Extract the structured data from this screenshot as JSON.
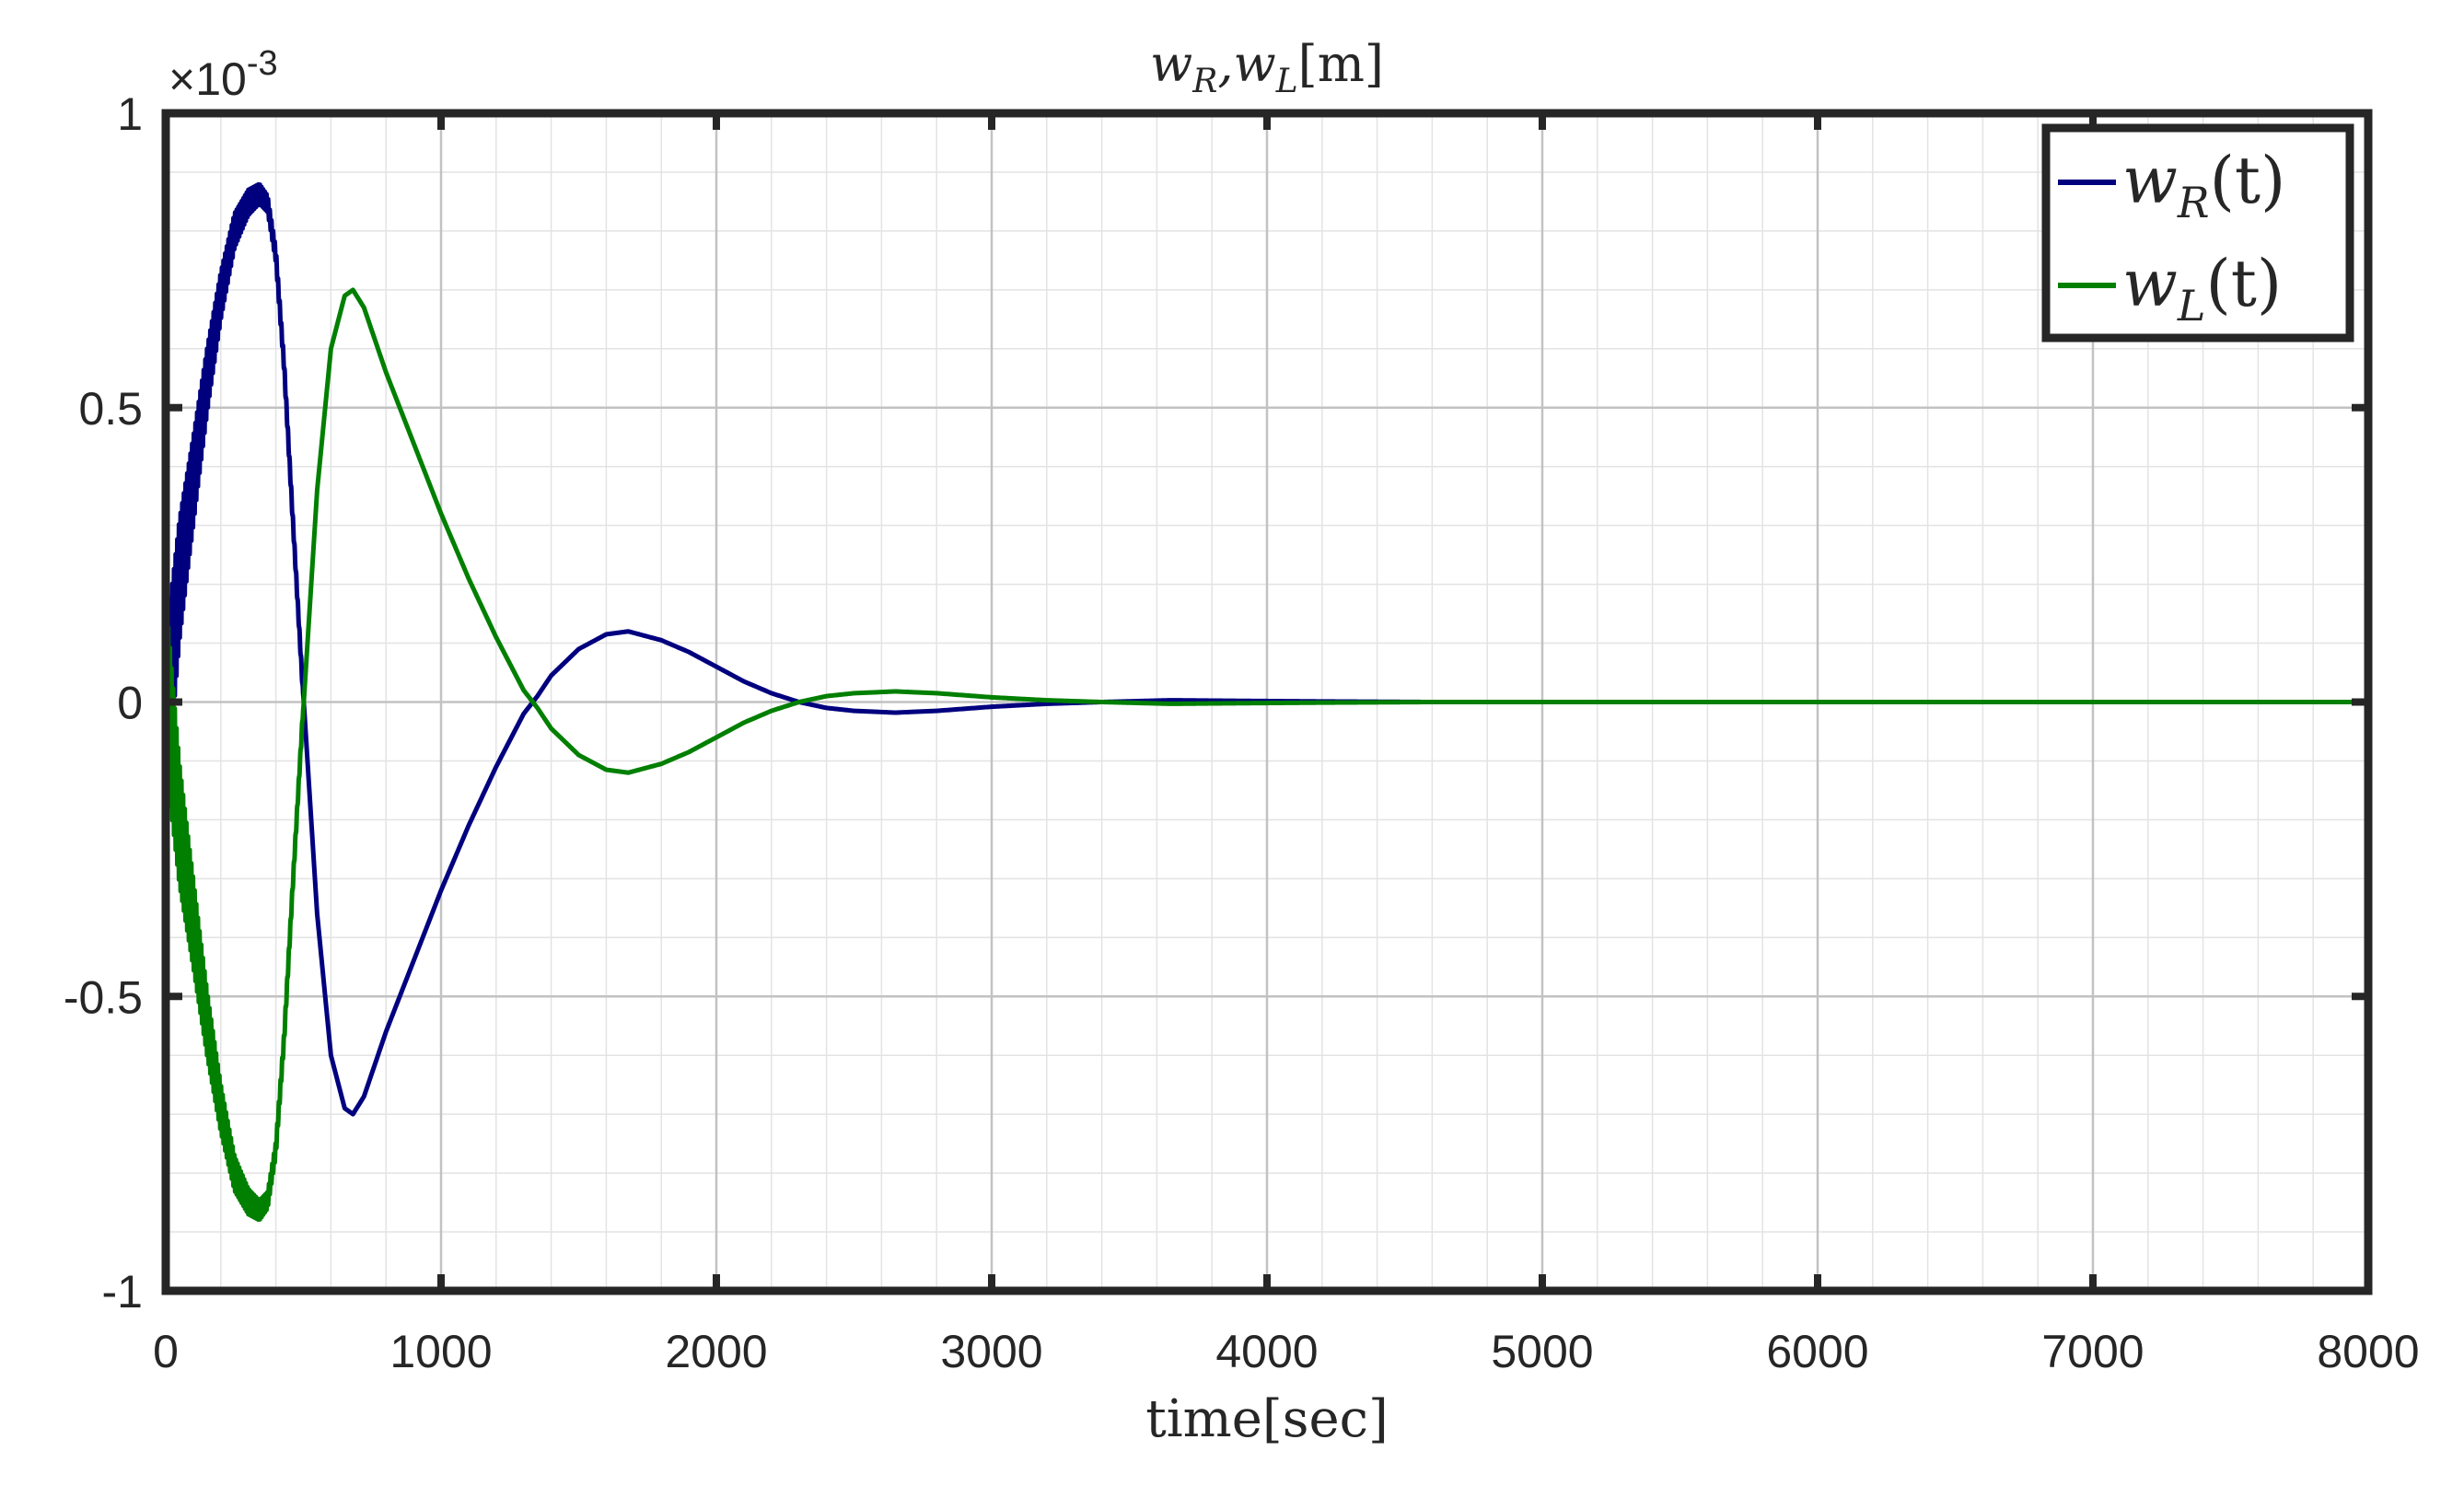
{
  "chart_data": {
    "type": "line",
    "title_main": "w",
    "title_sub1": "R",
    "title_sep": ",w",
    "title_sub2": "L",
    "title_unit": "[m]",
    "xlabel": "time[sec]",
    "ylabel": "",
    "xlim": [
      0,
      8000
    ],
    "ylim": [
      -1,
      1
    ],
    "y_exponent_base": "×10",
    "y_exponent_power": "-3",
    "x_ticks": [
      0,
      1000,
      2000,
      3000,
      4000,
      5000,
      6000,
      7000,
      8000
    ],
    "x_tick_labels": [
      "0",
      "1000",
      "2000",
      "3000",
      "4000",
      "5000",
      "6000",
      "7000",
      "8000"
    ],
    "y_ticks": [
      1,
      0.5,
      0,
      -0.5,
      -1
    ],
    "y_tick_labels": [
      "1",
      "0.5",
      "0",
      "-0.5",
      "-1"
    ],
    "grid": true,
    "minor_grid": true,
    "legend_position": "top-right",
    "series": [
      {
        "name": "w_R(t)",
        "legend_main": "w",
        "legend_sub": "R",
        "legend_arg": "(t)",
        "color": "#00007f",
        "x": [
          0,
          50,
          100,
          150,
          200,
          250,
          300,
          340,
          370,
          400,
          430,
          460,
          500,
          550,
          600,
          650,
          680,
          720,
          800,
          900,
          1000,
          1100,
          1200,
          1300,
          1350,
          1400,
          1500,
          1600,
          1680,
          1800,
          1900,
          2000,
          2100,
          2200,
          2300,
          2400,
          2500,
          2650,
          2800,
          3000,
          3200,
          3400,
          3650,
          3900,
          4200,
          4600,
          5000,
          6000,
          7000,
          8000
        ],
        "values": [
          0.1,
          0.31,
          0.45,
          0.6,
          0.73,
          0.83,
          0.87,
          0.88,
          0.86,
          0.77,
          0.58,
          0.33,
          0.01,
          -0.36,
          -0.6,
          -0.69,
          -0.7,
          -0.67,
          -0.56,
          -0.44,
          -0.32,
          -0.21,
          -0.11,
          -0.02,
          0.01,
          0.045,
          0.09,
          0.115,
          0.12,
          0.105,
          0.085,
          0.06,
          0.035,
          0.015,
          0.0,
          -0.01,
          -0.015,
          -0.018,
          -0.015,
          -0.008,
          -0.003,
          0.0,
          0.003,
          0.002,
          0.001,
          0.0,
          0.0,
          0.0,
          0.0,
          0.0
        ]
      },
      {
        "name": "w_L(t)",
        "legend_main": "w",
        "legend_sub": "L",
        "legend_arg": "(t)",
        "color": "#007f00",
        "x": [
          0,
          50,
          100,
          150,
          200,
          250,
          300,
          340,
          370,
          400,
          430,
          460,
          500,
          550,
          600,
          650,
          680,
          720,
          800,
          900,
          1000,
          1100,
          1200,
          1300,
          1350,
          1400,
          1500,
          1600,
          1680,
          1800,
          1900,
          2000,
          2100,
          2200,
          2300,
          2400,
          2500,
          2650,
          2800,
          3000,
          3200,
          3400,
          3650,
          3900,
          4200,
          4600,
          5000,
          6000,
          7000,
          8000
        ],
        "values": [
          -0.1,
          -0.31,
          -0.45,
          -0.6,
          -0.73,
          -0.83,
          -0.87,
          -0.88,
          -0.86,
          -0.77,
          -0.58,
          -0.33,
          -0.01,
          0.36,
          0.6,
          0.69,
          0.7,
          0.67,
          0.56,
          0.44,
          0.32,
          0.21,
          0.11,
          0.02,
          -0.01,
          -0.045,
          -0.09,
          -0.115,
          -0.12,
          -0.105,
          -0.085,
          -0.06,
          -0.035,
          -0.015,
          0.0,
          0.01,
          0.015,
          0.018,
          0.015,
          0.008,
          0.003,
          0.0,
          -0.003,
          -0.002,
          -0.001,
          0.0,
          0.0,
          0.0,
          0.0,
          0.0
        ]
      }
    ]
  }
}
